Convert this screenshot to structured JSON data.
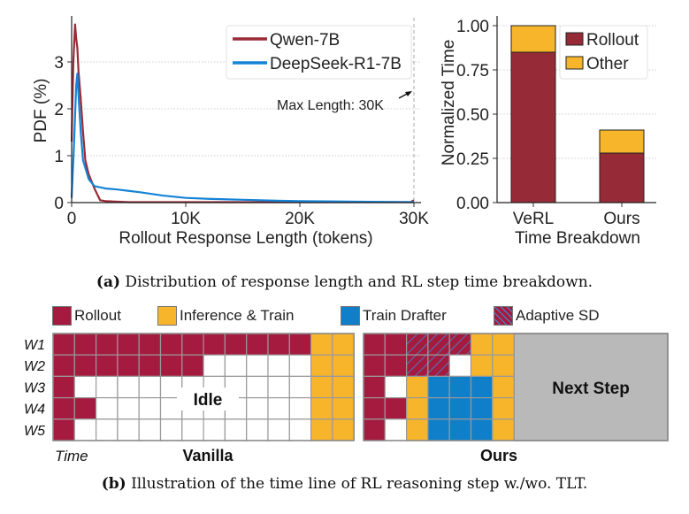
{
  "colors": {
    "rollout": "#a51b3f",
    "infer": "#f6b52b",
    "drafter": "#0f7fc9",
    "idle": "#ffffff",
    "next": "#b9b9b9",
    "qwen": "#9a2a36",
    "deepseek": "#1583d6",
    "bar_rollout": "#962b37",
    "bar_other": "#f6b52b"
  },
  "chart_data": [
    {
      "type": "line",
      "xlabel": "Rollout Response Length (tokens)",
      "ylabel": "PDF (%)",
      "xlim": [
        0,
        30000
      ],
      "ylim": [
        0,
        4
      ],
      "xticks": [
        {
          "v": 0,
          "label": "0"
        },
        {
          "v": 10000,
          "label": "10K"
        },
        {
          "v": 20000,
          "label": "20K"
        },
        {
          "v": 30000,
          "label": "30K"
        }
      ],
      "yticks": [
        {
          "v": 0,
          "label": "0"
        },
        {
          "v": 1,
          "label": "1"
        },
        {
          "v": 2,
          "label": "2"
        },
        {
          "v": 3,
          "label": "3"
        }
      ],
      "grid": "horizontal dotted",
      "legend": "top-right",
      "annotation": "Max Length: 30K",
      "series": [
        {
          "name": "Qwen-7B",
          "color": "#9a2a36",
          "points": [
            [
              0,
              1.3
            ],
            [
              150,
              3.0
            ],
            [
              300,
              3.8
            ],
            [
              400,
              3.5
            ],
            [
              500,
              3.3
            ],
            [
              600,
              2.8
            ],
            [
              800,
              2.2
            ],
            [
              1000,
              1.5
            ],
            [
              1200,
              0.9
            ],
            [
              1500,
              0.6
            ],
            [
              2000,
              0.3
            ],
            [
              2500,
              0.05
            ],
            [
              3000,
              0.03
            ],
            [
              5000,
              0.01
            ],
            [
              29700,
              0.01
            ],
            [
              30000,
              0.05
            ]
          ]
        },
        {
          "name": "DeepSeek-R1-7B",
          "color": "#1583d6",
          "points": [
            [
              0,
              0.1
            ],
            [
              200,
              1.2
            ],
            [
              400,
              2.5
            ],
            [
              500,
              2.75
            ],
            [
              600,
              2.3
            ],
            [
              800,
              1.5
            ],
            [
              1000,
              0.9
            ],
            [
              1500,
              0.5
            ],
            [
              2000,
              0.35
            ],
            [
              3000,
              0.3
            ],
            [
              4000,
              0.28
            ],
            [
              5000,
              0.25
            ],
            [
              6000,
              0.22
            ],
            [
              8000,
              0.15
            ],
            [
              10000,
              0.1
            ],
            [
              12000,
              0.08
            ],
            [
              15000,
              0.06
            ],
            [
              18000,
              0.04
            ],
            [
              20000,
              0.03
            ],
            [
              25000,
              0.02
            ],
            [
              30000,
              0.01
            ]
          ]
        }
      ]
    },
    {
      "type": "bar",
      "stacked": true,
      "xlabel": "Time Breakdown",
      "ylabel": "Normalized Time",
      "ylim": [
        0,
        1
      ],
      "yticks": [
        "0.00",
        "0.25",
        "0.50",
        "0.75",
        "1.00"
      ],
      "categories": [
        "VeRL",
        "Ours"
      ],
      "legend": "top-right",
      "series": [
        {
          "name": "Rollout",
          "color": "#962b37",
          "values": [
            0.85,
            0.28
          ]
        },
        {
          "name": "Other",
          "color": "#f6b52b",
          "values": [
            0.15,
            0.13
          ]
        }
      ]
    }
  ],
  "diagram": {
    "legend": [
      {
        "key": "R",
        "label": "Rollout"
      },
      {
        "key": "Y",
        "label": "Inference & Train"
      },
      {
        "key": "B",
        "label": "Train Drafter"
      },
      {
        "key": "H",
        "label": "Adaptive SD"
      }
    ],
    "worker_labels": [
      "W1",
      "W2",
      "W3",
      "W4",
      "W5"
    ],
    "time_label": "Time",
    "vanilla": {
      "title": "Vanilla",
      "idle_label": "Idle",
      "rows": [
        "RRRRRRRRRRRRYY",
        "RRRRRRRWWWWWYY",
        "RWWWWWWWWWWWYY",
        "RRWWWWWWWWWWYY",
        "RWWWWWWWWWWWYY"
      ]
    },
    "ours": {
      "title": "Ours",
      "next_label": "Next Step",
      "rows": [
        "RRHHHYY",
        "RRHHWYY",
        "RWYBBBY",
        "RRYBBBY",
        "RWYBBBY"
      ]
    }
  },
  "captions": {
    "a_tag": "(a)",
    "a_text": " Distribution of response length and RL step time breakdown.",
    "b_tag": "(b)",
    "b_text": " Illustration of the time line of RL reasoning step w./wo. TLT."
  }
}
